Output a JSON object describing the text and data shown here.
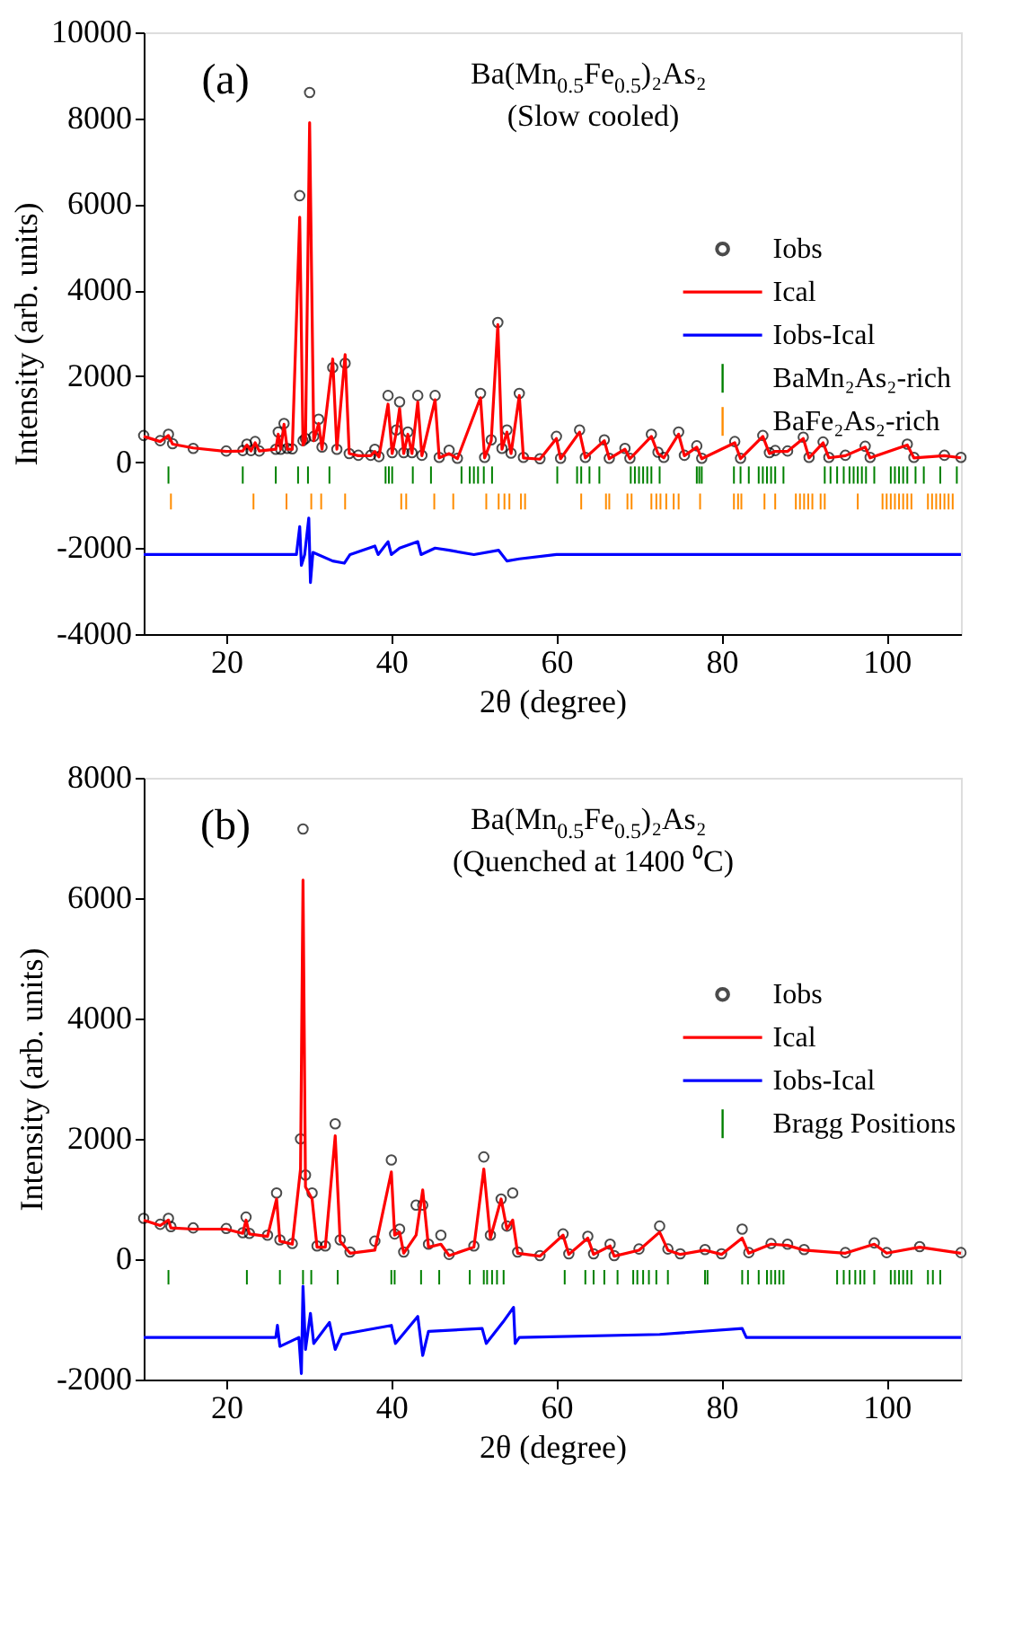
{
  "chart_data": [
    {
      "type": "line",
      "title": "Ba(Mn$_{0.5}$Fe$_{0.5}$)₂As₂",
      "subtitle": "(Slow cooled)",
      "xlabel": "2θ (degree)",
      "ylabel": "Intensity (arb. units)",
      "annotations": [
        "(a)"
      ],
      "legend": "right",
      "xlim": [
        10,
        109
      ],
      "xticks": [
        20,
        40,
        60,
        80,
        100
      ],
      "ylim": [
        -4000,
        10000
      ],
      "yticks": [
        -4000,
        -2000,
        0,
        2000,
        4000,
        6000,
        8000,
        10000
      ],
      "x": [
        10,
        12,
        13,
        13.5,
        16,
        20,
        22,
        22.5,
        23,
        23.5,
        24,
        26,
        26.3,
        26.6,
        27,
        27.4,
        28,
        28.9,
        29.3,
        29.6,
        30.1,
        30.6,
        31.2,
        31.6,
        32.9,
        33.4,
        34.4,
        34.9,
        36,
        37.5,
        38,
        38.5,
        39.6,
        40.1,
        40.6,
        41,
        41.5,
        42,
        42.5,
        43.2,
        43.7,
        45.3,
        45.8,
        47,
        48,
        50.8,
        51.3,
        52.1,
        52.9,
        53.4,
        54,
        54.5,
        55.5,
        56,
        58,
        60,
        60.5,
        62.8,
        63.5,
        65.8,
        66.4,
        68.3,
        68.9,
        71.5,
        72.3,
        73,
        74.8,
        75.5,
        77,
        77.6,
        81.6,
        82.3,
        85,
        85.8,
        86.5,
        88,
        89.9,
        90.6,
        92.3,
        93,
        95,
        97.4,
        98,
        102.5,
        103.3,
        107,
        109
      ],
      "series": [
        {
          "name": "Iobs",
          "type": "scatter",
          "marker": "circle",
          "color": "#000000",
          "values": [
            620,
            500,
            650,
            430,
            320,
            260,
            270,
            420,
            270,
            480,
            260,
            300,
            700,
            300,
            900,
            320,
            310,
            6200,
            500,
            550,
            8600,
            600,
            1000,
            350,
            2200,
            300,
            2300,
            200,
            160,
            160,
            300,
            130,
            1550,
            220,
            750,
            1400,
            220,
            700,
            220,
            1550,
            160,
            1550,
            110,
            280,
            90,
            1600,
            110,
            520,
            3250,
            320,
            750,
            210,
            1600,
            110,
            80,
            600,
            90,
            750,
            110,
            520,
            90,
            320,
            90,
            650,
            230,
            110,
            700,
            160,
            380,
            90,
            480,
            90,
            620,
            220,
            270,
            260,
            580,
            110,
            470,
            110,
            160,
            370,
            110,
            420,
            110,
            160,
            110
          ]
        },
        {
          "name": "Ical",
          "color": "#ff0000",
          "values": [
            600,
            480,
            620,
            420,
            330,
            250,
            260,
            400,
            260,
            450,
            260,
            300,
            650,
            300,
            880,
            300,
            300,
            5700,
            400,
            500,
            7900,
            500,
            900,
            300,
            2400,
            300,
            2500,
            200,
            150,
            150,
            250,
            120,
            1350,
            200,
            700,
            1250,
            200,
            650,
            200,
            1400,
            150,
            1450,
            100,
            200,
            80,
            1500,
            100,
            500,
            3200,
            300,
            700,
            200,
            1550,
            100,
            70,
            550,
            80,
            700,
            100,
            500,
            80,
            300,
            80,
            600,
            200,
            100,
            650,
            150,
            350,
            80,
            450,
            80,
            600,
            200,
            250,
            250,
            550,
            100,
            450,
            100,
            150,
            350,
            100,
            400,
            100,
            150,
            100
          ]
        },
        {
          "name": "Iobs-Ical",
          "color": "#0000ff",
          "x": [
            10,
            28.5,
            28.9,
            29.1,
            29.5,
            30,
            30.2,
            30.5,
            32.9,
            34.3,
            35,
            38,
            38.4,
            39.6,
            40,
            41,
            43.2,
            43.6,
            45.3,
            47,
            50,
            53,
            54,
            55.5,
            60,
            109
          ],
          "values": [
            -2150,
            -2150,
            -1500,
            -2400,
            -2150,
            -1300,
            -2800,
            -2100,
            -2300,
            -2350,
            -2150,
            -1950,
            -2150,
            -1850,
            -2150,
            -2000,
            -1850,
            -2150,
            -2000,
            -2050,
            -2150,
            -2050,
            -2300,
            -2250,
            -2150,
            -2150
          ]
        },
        {
          "name": "BaMn₂As₂-rich",
          "type": "bar",
          "color": "#008000",
          "x": [
            13,
            22,
            26,
            28.7,
            29.9,
            32.5,
            39.3,
            39.7,
            40.1,
            42.6,
            44.8,
            48.5,
            49.5,
            50,
            50.5,
            51.2,
            52.2,
            60.1,
            62.5,
            63,
            64,
            65.2,
            69,
            69.5,
            70,
            70.5,
            71,
            71.5,
            72.5,
            77,
            77.3,
            77.6,
            81.5,
            82.3,
            83.3,
            84.5,
            85,
            85.5,
            86,
            86.5,
            87.5,
            92.5,
            93.2,
            94,
            94.8,
            95.5,
            96,
            96.5,
            97,
            97.5,
            98.5,
            100.5,
            101,
            101.5,
            102,
            102.5,
            103.5,
            104.5,
            106.5,
            108.5
          ],
          "values": [
            400,
            400,
            400,
            400,
            400,
            400,
            400,
            400,
            400,
            400,
            400,
            400,
            400,
            400,
            400,
            400,
            400,
            400,
            400,
            400,
            400,
            400,
            400,
            400,
            400,
            400,
            400,
            400,
            400,
            400,
            400,
            400,
            400,
            400,
            400,
            400,
            400,
            400,
            400,
            400,
            400,
            400,
            400,
            400,
            400,
            400,
            400,
            400,
            400,
            400,
            400,
            400,
            400,
            400,
            400,
            400,
            400,
            400,
            400,
            400
          ],
          "base": [
            -500,
            -500,
            -500,
            -500,
            -500,
            -500,
            -500,
            -500,
            -500,
            -500,
            -500,
            -500,
            -500,
            -500,
            -500,
            -500,
            -500,
            -500,
            -500,
            -500,
            -500,
            -500,
            -500,
            -500,
            -500,
            -500,
            -500,
            -500,
            -500,
            -500,
            -500,
            -500,
            -500,
            -500,
            -500,
            -500,
            -500,
            -500,
            -500,
            -500,
            -500,
            -500,
            -500,
            -500,
            -500,
            -500,
            -500,
            -500,
            -500,
            -500,
            -500,
            -500,
            -500,
            -500,
            -500,
            -500,
            -500,
            -500,
            -500,
            -500
          ]
        },
        {
          "name": "BaFe₂As₂-rich",
          "type": "bar",
          "color": "#ff8c00",
          "x": [
            13.3,
            23.3,
            27.3,
            30.3,
            31.5,
            34.4,
            41.2,
            41.8,
            45.2,
            47.5,
            51.5,
            53,
            53.7,
            54.3,
            55.7,
            56.2,
            63,
            66,
            66.4,
            68.6,
            69.1,
            71.5,
            72.1,
            72.6,
            73.3,
            74.2,
            74.8,
            77.4,
            81.5,
            82,
            82.4,
            85.2,
            86.5,
            89,
            89.5,
            90,
            90.5,
            91,
            92,
            92.5,
            96.5,
            99.5,
            100,
            100.5,
            101,
            101.5,
            102,
            102.5,
            103,
            105,
            105.5,
            106,
            106.5,
            107,
            107.5,
            108
          ],
          "values": [
            370,
            370,
            370,
            370,
            370,
            370,
            370,
            370,
            370,
            370,
            370,
            370,
            370,
            370,
            370,
            370,
            370,
            370,
            370,
            370,
            370,
            370,
            370,
            370,
            370,
            370,
            370,
            370,
            370,
            370,
            370,
            370,
            370,
            370,
            370,
            370,
            370,
            370,
            370,
            370,
            370,
            370,
            370,
            370,
            370,
            370,
            370,
            370,
            370,
            370,
            370,
            370,
            370,
            370,
            370,
            370
          ],
          "base": [
            -1100,
            -1100,
            -1100,
            -1100,
            -1100,
            -1100,
            -1100,
            -1100,
            -1100,
            -1100,
            -1100,
            -1100,
            -1100,
            -1100,
            -1100,
            -1100,
            -1100,
            -1100,
            -1100,
            -1100,
            -1100,
            -1100,
            -1100,
            -1100,
            -1100,
            -1100,
            -1100,
            -1100,
            -1100,
            -1100,
            -1100,
            -1100,
            -1100,
            -1100,
            -1100,
            -1100,
            -1100,
            -1100,
            -1100,
            -1100,
            -1100,
            -1100,
            -1100,
            -1100,
            -1100,
            -1100,
            -1100,
            -1100,
            -1100,
            -1100,
            -1100,
            -1100,
            -1100,
            -1100,
            -1100,
            -1100
          ]
        }
      ]
    },
    {
      "type": "line",
      "title": "Ba(Mn$_{0.5}$Fe$_{0.5}$)₂As₂",
      "subtitle": "(Quenched at 1400 ⁰C)",
      "xlabel": "2θ (degree)",
      "ylabel": "Intensity (arb. units)",
      "annotations": [
        "(b)"
      ],
      "legend": "right",
      "xlim": [
        10,
        109
      ],
      "xticks": [
        20,
        40,
        60,
        80,
        100
      ],
      "ylim": [
        -2000,
        8000
      ],
      "yticks": [
        -2000,
        0,
        2000,
        4000,
        6000,
        8000
      ],
      "x": [
        10,
        12,
        13,
        13.3,
        16,
        20,
        22,
        22.4,
        22.8,
        25,
        26.1,
        26.5,
        28,
        29,
        29.3,
        29.6,
        30.4,
        31,
        32,
        33.2,
        33.8,
        35,
        38,
        40,
        40.4,
        41,
        41.5,
        43,
        43.8,
        44.5,
        46,
        47,
        50,
        51.2,
        52,
        53.3,
        54,
        54.7,
        55.3,
        58,
        60.8,
        61.5,
        63.8,
        64.5,
        66.5,
        67,
        70,
        72.5,
        73.5,
        75,
        78,
        80,
        82.5,
        83.3,
        86,
        88,
        90,
        95,
        98.5,
        100,
        104,
        109
      ],
      "series": [
        {
          "name": "Iobs",
          "type": "scatter",
          "marker": "circle",
          "color": "#000000",
          "values": [
            680,
            580,
            680,
            540,
            520,
            510,
            440,
            700,
            430,
            400,
            1100,
            320,
            260,
            2000,
            7150,
            1400,
            1100,
            220,
            220,
            2250,
            320,
            120,
            300,
            1650,
            420,
            500,
            120,
            900,
            900,
            250,
            400,
            80,
            220,
            1700,
            400,
            1000,
            550,
            1100,
            120,
            60,
            420,
            90,
            380,
            90,
            250,
            60,
            170,
            550,
            170,
            90,
            160,
            90,
            500,
            110,
            260,
            250,
            160,
            110,
            270,
            110,
            210,
            110
          ]
        },
        {
          "name": "Ical",
          "color": "#ff0000",
          "values": [
            650,
            560,
            650,
            520,
            500,
            500,
            430,
            650,
            420,
            380,
            1000,
            300,
            250,
            1500,
            6300,
            1200,
            1000,
            200,
            200,
            2050,
            300,
            100,
            150,
            1450,
            400,
            450,
            100,
            400,
            1150,
            200,
            250,
            60,
            200,
            1500,
            350,
            1000,
            500,
            650,
            100,
            50,
            400,
            80,
            350,
            80,
            220,
            50,
            150,
            450,
            150,
            80,
            150,
            80,
            350,
            100,
            250,
            230,
            150,
            100,
            250,
            100,
            200,
            100
          ]
        },
        {
          "name": "Iobs-Ical",
          "color": "#0000ff",
          "x": [
            10,
            26,
            26.2,
            26.5,
            28.8,
            29.1,
            29.3,
            29.6,
            30.2,
            30.6,
            32.5,
            33.2,
            34,
            40,
            40.5,
            43.2,
            43.8,
            44.5,
            51,
            51.5,
            53.5,
            54.8,
            55,
            55.5,
            72.5,
            82.5,
            83,
            109
          ],
          "values": [
            -1300,
            -1300,
            -1100,
            -1450,
            -1300,
            -1900,
            -450,
            -1500,
            -900,
            -1400,
            -1050,
            -1500,
            -1250,
            -1100,
            -1400,
            -950,
            -1600,
            -1200,
            -1150,
            -1400,
            -1050,
            -800,
            -1400,
            -1300,
            -1250,
            -1150,
            -1300,
            -1300
          ]
        },
        {
          "name": "Bragg Positions",
          "type": "bar",
          "color": "#008000",
          "x": [
            13,
            22.5,
            26.5,
            29.3,
            30.3,
            33.5,
            40,
            40.4,
            43.6,
            45.8,
            49.5,
            51.2,
            51.6,
            52.2,
            52.8,
            53.6,
            61,
            63.5,
            64.5,
            65.8,
            67.4,
            69.3,
            69.8,
            70.5,
            71.2,
            72.1,
            73.5,
            78,
            78.3,
            82.5,
            83.2,
            84.5,
            85.5,
            86,
            86.5,
            87,
            87.5,
            94,
            94.8,
            95.5,
            96.2,
            96.8,
            97.3,
            98.5,
            100.5,
            101,
            101.5,
            102,
            102.5,
            103,
            105,
            105.6,
            106.5
          ],
          "values": [
            240,
            240,
            240,
            240,
            240,
            240,
            240,
            240,
            240,
            240,
            240,
            240,
            240,
            240,
            240,
            240,
            240,
            240,
            240,
            240,
            240,
            240,
            240,
            240,
            240,
            240,
            240,
            240,
            240,
            240,
            240,
            240,
            240,
            240,
            240,
            240,
            240,
            240,
            240,
            240,
            240,
            240,
            240,
            240,
            240,
            240,
            240,
            240,
            240,
            240,
            240,
            240,
            240
          ],
          "base": [
            -420,
            -420,
            -420,
            -420,
            -420,
            -420,
            -420,
            -420,
            -420,
            -420,
            -420,
            -420,
            -420,
            -420,
            -420,
            -420,
            -420,
            -420,
            -420,
            -420,
            -420,
            -420,
            -420,
            -420,
            -420,
            -420,
            -420,
            -420,
            -420,
            -420,
            -420,
            -420,
            -420,
            -420,
            -420,
            -420,
            -420,
            -420,
            -420,
            -420,
            -420,
            -420,
            -420,
            -420,
            -420,
            -420,
            -420,
            -420,
            -420,
            -420,
            -420,
            -420,
            -420
          ]
        }
      ]
    }
  ]
}
